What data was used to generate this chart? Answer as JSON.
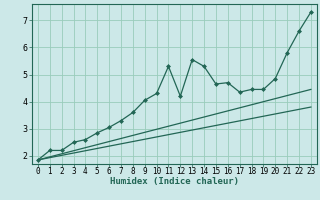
{
  "title": "",
  "xlabel": "Humidex (Indice chaleur)",
  "ylabel": "",
  "bg_color": "#cce8e8",
  "grid_color": "#99ccbb",
  "line_color": "#226655",
  "xlim": [
    -0.5,
    23.5
  ],
  "ylim": [
    1.7,
    7.6
  ],
  "xticks": [
    0,
    1,
    2,
    3,
    4,
    5,
    6,
    7,
    8,
    9,
    10,
    11,
    12,
    13,
    14,
    15,
    16,
    17,
    18,
    19,
    20,
    21,
    22,
    23
  ],
  "yticks": [
    2,
    3,
    4,
    5,
    6,
    7
  ],
  "main_x": [
    0,
    1,
    2,
    3,
    4,
    5,
    6,
    7,
    8,
    9,
    10,
    11,
    12,
    13,
    14,
    15,
    16,
    17,
    18,
    19,
    20,
    21,
    22,
    23
  ],
  "main_y": [
    1.85,
    2.2,
    2.2,
    2.5,
    2.6,
    2.85,
    3.05,
    3.3,
    3.6,
    4.05,
    4.3,
    5.3,
    4.2,
    5.55,
    5.3,
    4.65,
    4.7,
    4.35,
    4.45,
    4.45,
    4.85,
    5.8,
    6.6,
    7.3
  ],
  "line2_x": [
    0,
    23
  ],
  "line2_y": [
    1.85,
    4.45
  ],
  "line3_x": [
    0,
    23
  ],
  "line3_y": [
    1.85,
    3.8
  ],
  "tick_fontsize": 5.5,
  "xlabel_fontsize": 6.5
}
